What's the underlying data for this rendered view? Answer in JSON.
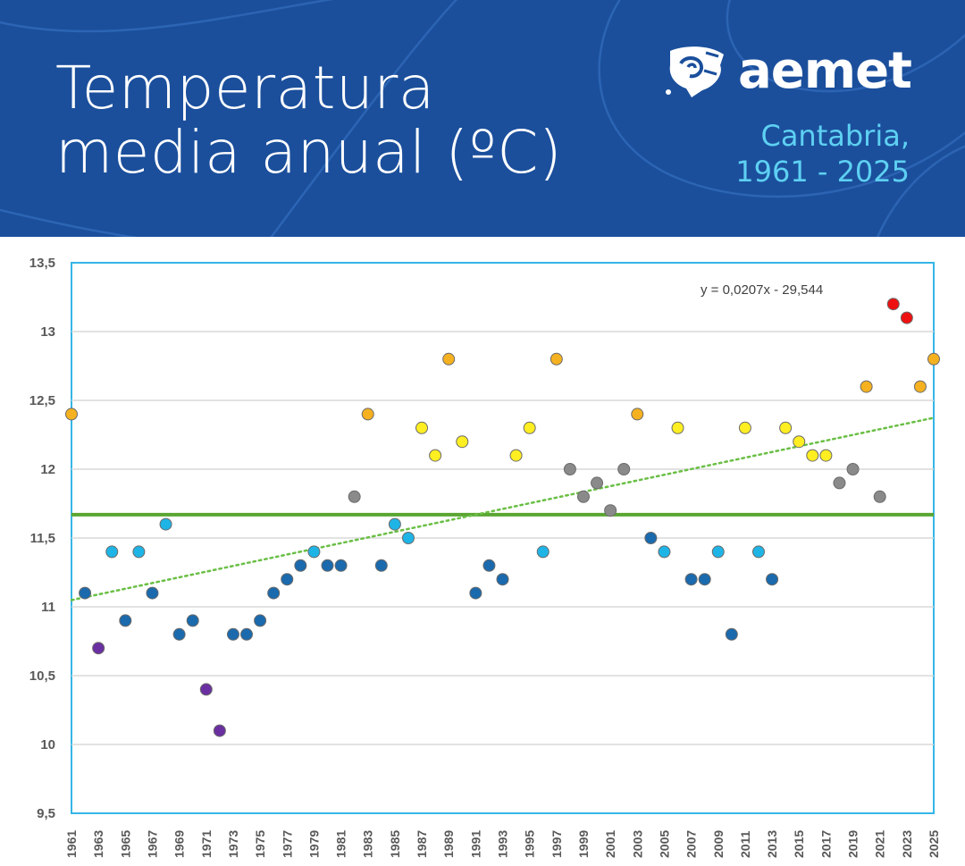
{
  "header": {
    "title_line1": "Temperatura",
    "title_line2": "media anual (ºC)",
    "logo_text": "aemet",
    "region_line1": "Cantabria,",
    "region_line2": "1961 - 2025",
    "background_color": "#1b4f9c",
    "region_color": "#5ed0f2"
  },
  "chart_data": {
    "type": "scatter",
    "title": "",
    "xlabel": "",
    "ylabel": "",
    "ylim": [
      9.5,
      13.5
    ],
    "xlim": [
      1961,
      2025
    ],
    "y_ticks": [
      "9,5",
      "10",
      "10,5",
      "11",
      "11,5",
      "12",
      "12,5",
      "13",
      "13,5"
    ],
    "x_ticks": [
      "1961",
      "1963",
      "1965",
      "1967",
      "1969",
      "1971",
      "1973",
      "1975",
      "1977",
      "1979",
      "1981",
      "1983",
      "1985",
      "1987",
      "1989",
      "1991",
      "1993",
      "1995",
      "1997",
      "1999",
      "2001",
      "2003",
      "2005",
      "2007",
      "2009",
      "2011",
      "2013",
      "2015",
      "2017",
      "2019",
      "2021",
      "2023",
      "2025"
    ],
    "grid": true,
    "reference_mean": 11.67,
    "trendline": {
      "equation": "y = 0,0207x - 29,544",
      "slope": 0.0207,
      "intercept": -29.544
    },
    "category_colors": {
      "very_cold": "#6a2fa0",
      "cold": "#1a6aad",
      "cool": "#1fb4e6",
      "normal": "#8a8a8a",
      "warm": "#ffee22",
      "very_warm": "#f5b120",
      "extremely_warm": "#ee1111"
    },
    "colors": {
      "mean_line": "#5aa532",
      "trend_line": "#6abf45",
      "frame": "#35b6e6",
      "grid": "#d9d9d9"
    },
    "x": [
      1961,
      1962,
      1963,
      1964,
      1965,
      1966,
      1967,
      1968,
      1969,
      1970,
      1971,
      1972,
      1973,
      1974,
      1975,
      1976,
      1977,
      1978,
      1979,
      1980,
      1981,
      1982,
      1983,
      1984,
      1985,
      1986,
      1987,
      1988,
      1989,
      1990,
      1991,
      1992,
      1993,
      1994,
      1995,
      1996,
      1997,
      1998,
      1999,
      2000,
      2001,
      2002,
      2003,
      2004,
      2005,
      2006,
      2007,
      2008,
      2009,
      2010,
      2011,
      2012,
      2013,
      2014,
      2015,
      2016,
      2017,
      2018,
      2019,
      2020,
      2021,
      2022,
      2023,
      2024,
      2025
    ],
    "y": [
      12.4,
      11.1,
      10.7,
      11.4,
      10.9,
      11.4,
      11.1,
      11.6,
      10.8,
      10.9,
      10.4,
      10.1,
      10.8,
      10.8,
      10.9,
      11.1,
      11.2,
      11.3,
      11.4,
      11.3,
      11.3,
      11.8,
      12.4,
      11.3,
      11.6,
      11.5,
      12.3,
      12.1,
      12.8,
      12.2,
      11.1,
      11.3,
      11.2,
      12.1,
      12.3,
      11.4,
      12.8,
      12.0,
      11.8,
      11.9,
      11.7,
      12.0,
      12.4,
      11.5,
      11.4,
      12.3,
      11.2,
      11.2,
      11.4,
      10.8,
      12.3,
      11.4,
      11.2,
      12.3,
      12.2,
      12.1,
      12.1,
      11.9,
      12.0,
      12.6,
      11.8,
      13.2,
      13.1,
      12.6,
      12.8
    ],
    "category": [
      "very_warm",
      "cold",
      "very_cold",
      "cool",
      "cold",
      "cool",
      "cold",
      "cool",
      "cold",
      "cold",
      "very_cold",
      "very_cold",
      "cold",
      "cold",
      "cold",
      "cold",
      "cold",
      "cold",
      "cool",
      "cold",
      "cold",
      "normal",
      "very_warm",
      "cold",
      "cool",
      "cool",
      "warm",
      "warm",
      "very_warm",
      "warm",
      "cold",
      "cold",
      "cold",
      "warm",
      "warm",
      "cool",
      "very_warm",
      "normal",
      "normal",
      "normal",
      "normal",
      "normal",
      "very_warm",
      "cold",
      "cool",
      "warm",
      "cold",
      "cold",
      "cool",
      "cold",
      "warm",
      "cool",
      "cold",
      "warm",
      "warm",
      "warm",
      "warm",
      "normal",
      "normal",
      "very_warm",
      "normal",
      "extremely_warm",
      "extremely_warm",
      "very_warm",
      "very_warm"
    ]
  }
}
